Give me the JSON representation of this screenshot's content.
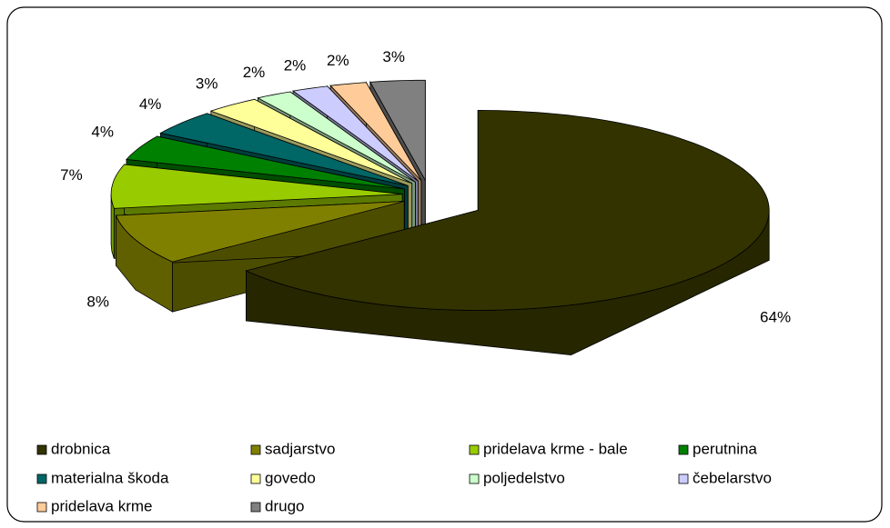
{
  "chart_data": {
    "type": "pie3d",
    "categories": [
      "drobnica",
      "sadjarstvo",
      "pridelava krme - bale",
      "perutnina",
      "materialna škoda",
      "govedo",
      "poljedelstvo",
      "čebelarstvo",
      "pridelava krme",
      "drugo"
    ],
    "values": [
      64,
      8,
      7,
      4,
      4,
      3,
      2,
      2,
      2,
      3
    ],
    "value_labels": [
      "64%",
      "8%",
      "7%",
      "4%",
      "4%",
      "3%",
      "2%",
      "2%",
      "2%",
      "3%"
    ],
    "colors": [
      "#333300",
      "#808000",
      "#99cc00",
      "#008000",
      "#006666",
      "#ffff99",
      "#ccffcc",
      "#ccccff",
      "#ffcc99",
      "#808080"
    ],
    "legend": "bottom"
  }
}
